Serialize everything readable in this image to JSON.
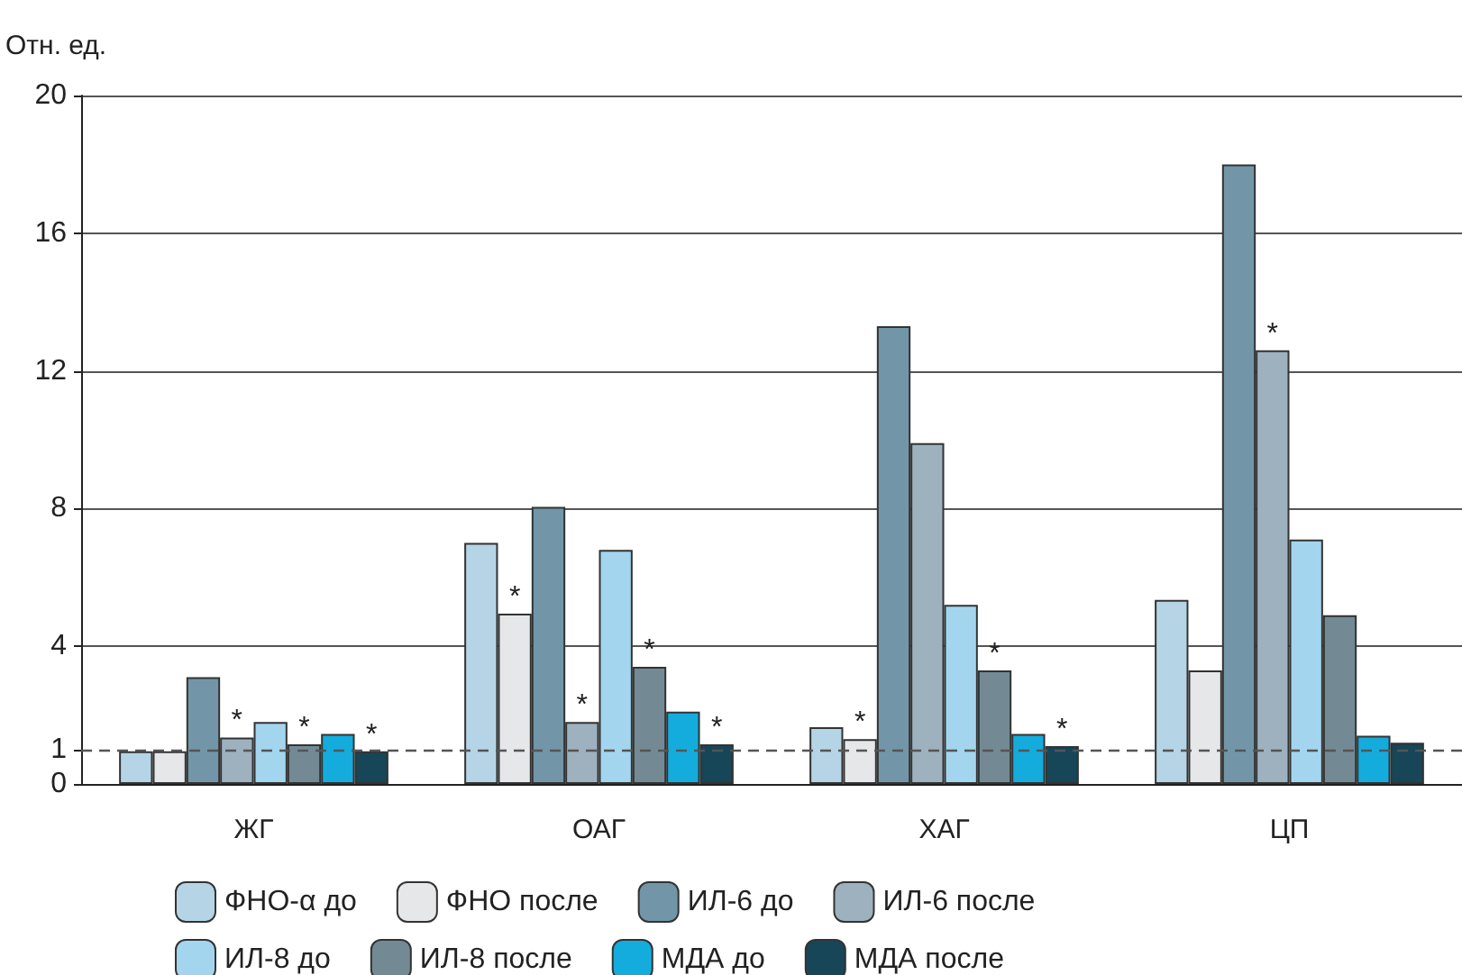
{
  "chart_data": {
    "type": "bar",
    "ylabel": "Отн. ед.",
    "categories": [
      "ЖГ",
      "ОАГ",
      "ХАГ",
      "ЦП"
    ],
    "series": [
      {
        "name": "ФНО-α до",
        "color": "#b5d5e6",
        "values": [
          0.95,
          7.0,
          1.65,
          5.35
        ]
      },
      {
        "name": "ФНО после",
        "color": "#e5e7e9",
        "values": [
          0.95,
          4.95,
          1.3,
          3.3
        ],
        "value_labels": [
          null,
          "*",
          "*",
          null
        ]
      },
      {
        "name": "ИЛ-6 до",
        "color": "#7296a8",
        "values": [
          3.1,
          8.05,
          13.3,
          18.0
        ]
      },
      {
        "name": "ИЛ-6 после",
        "color": "#9eb1bf",
        "values": [
          1.35,
          1.8,
          9.9,
          12.6
        ],
        "value_labels": [
          "*",
          "*",
          null,
          "*"
        ]
      },
      {
        "name": "ИЛ-8 до",
        "color": "#a3d6ee",
        "values": [
          1.8,
          6.8,
          5.2,
          7.1
        ]
      },
      {
        "name": "ИЛ-8 после",
        "color": "#738a95",
        "values": [
          1.15,
          3.4,
          3.3,
          4.9
        ],
        "value_labels": [
          "*",
          "*",
          "*",
          null
        ]
      },
      {
        "name": "МДА до",
        "color": "#14acdc",
        "values": [
          1.45,
          2.1,
          1.45,
          1.4
        ]
      },
      {
        "name": "МДА после",
        "color": "#174658",
        "values": [
          0.95,
          1.15,
          1.1,
          1.2
        ],
        "value_labels": [
          "*",
          "*",
          "*",
          null
        ]
      }
    ],
    "ylim": [
      0,
      20
    ],
    "yticks": [
      0,
      1,
      4,
      8,
      12,
      16,
      20
    ],
    "grid": "y",
    "legend": "bottom",
    "ref_lines": [
      {
        "axis": "y",
        "value": 1,
        "line_style": "dashed",
        "color": "#555555"
      }
    ]
  }
}
